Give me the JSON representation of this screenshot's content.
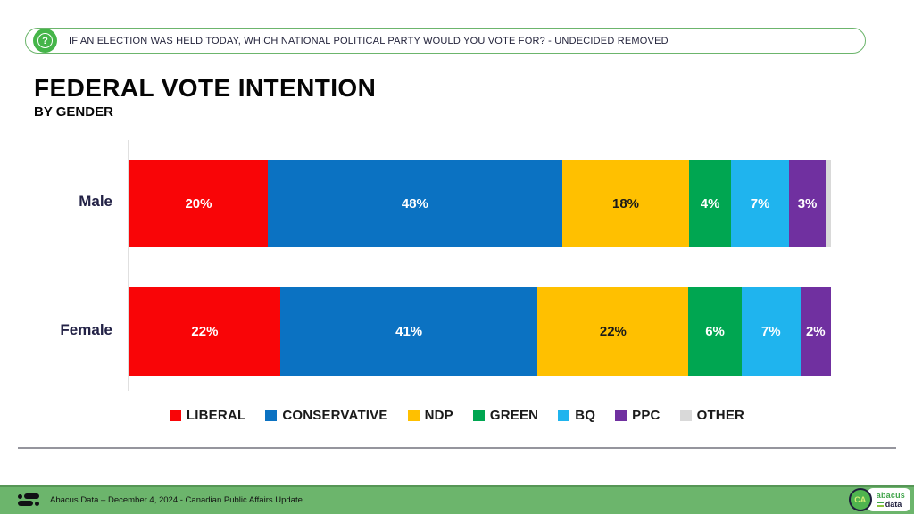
{
  "question_banner": {
    "text": "IF AN ELECTION WAS HELD TODAY, WHICH NATIONAL POLITICAL PARTY WOULD YOU VOTE FOR? - UNDECIDED REMOVED"
  },
  "title": "FEDERAL VOTE INTENTION",
  "subtitle": "BY GENDER",
  "chart_data": {
    "type": "bar",
    "orientation": "horizontal-stacked",
    "title": "FEDERAL VOTE INTENTION BY GENDER",
    "categories": [
      "Male",
      "Female"
    ],
    "series": [
      {
        "name": "LIBERAL",
        "color": "#f90507",
        "label_color": "#ffffff",
        "values": [
          20,
          22
        ]
      },
      {
        "name": "CONSERVATIVE",
        "color": "#0b72c2",
        "label_color": "#ffffff",
        "values": [
          48,
          41
        ]
      },
      {
        "name": "NDP",
        "color": "#ffc000",
        "label_color": "#1a1a1a",
        "values": [
          18,
          22
        ]
      },
      {
        "name": "GREEN",
        "color": "#00a651",
        "label_color": "#ffffff",
        "values": [
          4,
          6
        ]
      },
      {
        "name": "BQ",
        "color": "#1fb4ee",
        "label_color": "#ffffff",
        "values": [
          7,
          7
        ]
      },
      {
        "name": "PPC",
        "color": "#7030a0",
        "label_color": "#ffffff",
        "values": [
          3,
          2
        ]
      },
      {
        "name": "OTHER",
        "color": "#d9d9d9",
        "label_color": "#1a1a1a",
        "values": [
          1,
          0
        ]
      }
    ],
    "value_suffix": "%",
    "label_min": 2,
    "xlim": [
      0,
      100
    ],
    "legend_position": "bottom",
    "grid": false
  },
  "footer": {
    "source_text": "Abacus Data – December 4, 2024 - Canadian Public Affairs Update",
    "badge_text": "CA",
    "brand_name_top": "abacus",
    "brand_name_bottom": "data"
  }
}
